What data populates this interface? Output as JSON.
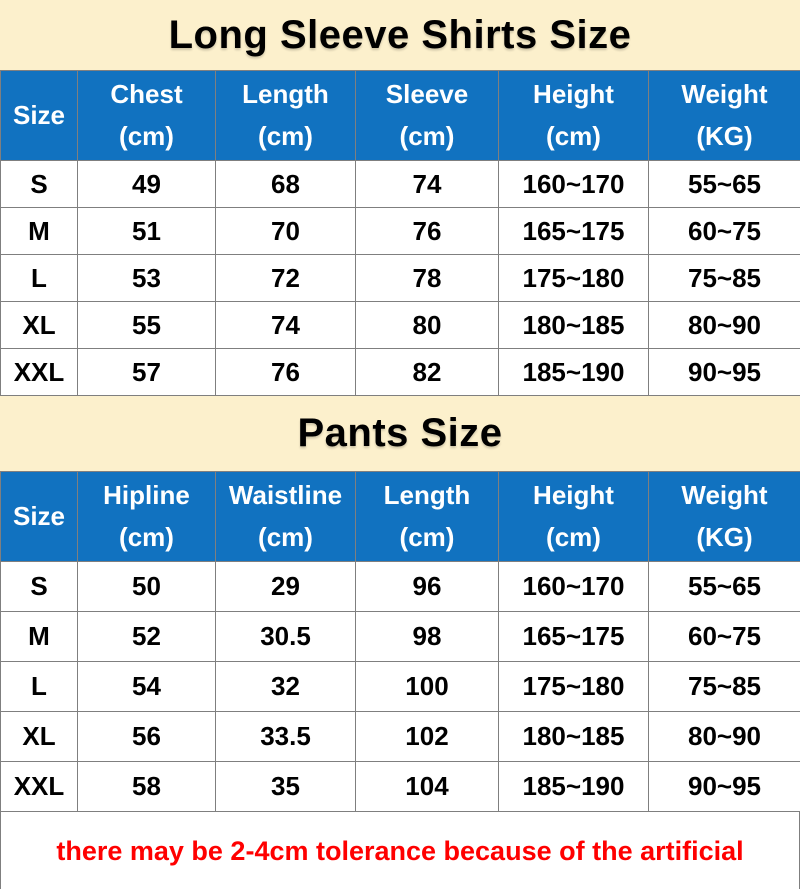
{
  "colors": {
    "banner_bg": "#FCF0CC",
    "header_bg": "#1172C0",
    "header_text": "#FFFFFF",
    "body_text": "#000000",
    "note_text": "#FF0000",
    "grid_border": "#7F7F7F"
  },
  "shirts": {
    "title": "Long Sleeve Shirts Size",
    "columns": [
      {
        "label": "Size",
        "unit": ""
      },
      {
        "label": "Chest",
        "unit": "(cm)"
      },
      {
        "label": "Length",
        "unit": "(cm)"
      },
      {
        "label": "Sleeve",
        "unit": "(cm)"
      },
      {
        "label": "Height",
        "unit": "(cm)"
      },
      {
        "label": "Weight",
        "unit": "(KG)"
      }
    ],
    "rows": [
      [
        "S",
        "49",
        "68",
        "74",
        "160~170",
        "55~65"
      ],
      [
        "M",
        "51",
        "70",
        "76",
        "165~175",
        "60~75"
      ],
      [
        "L",
        "53",
        "72",
        "78",
        "175~180",
        "75~85"
      ],
      [
        "XL",
        "55",
        "74",
        "80",
        "180~185",
        "80~90"
      ],
      [
        "XXL",
        "57",
        "76",
        "82",
        "185~190",
        "90~95"
      ]
    ]
  },
  "pants": {
    "title": "Pants Size",
    "columns": [
      {
        "label": "Size",
        "unit": ""
      },
      {
        "label": "Hipline",
        "unit": "(cm)"
      },
      {
        "label": "Waistline",
        "unit": "(cm)"
      },
      {
        "label": "Length",
        "unit": "(cm)"
      },
      {
        "label": "Height",
        "unit": "(cm)"
      },
      {
        "label": "Weight",
        "unit": "(KG)"
      }
    ],
    "rows": [
      [
        "S",
        "50",
        "29",
        "96",
        "160~170",
        "55~65"
      ],
      [
        "M",
        "52",
        "30.5",
        "98",
        "165~175",
        "60~75"
      ],
      [
        "L",
        "54",
        "32",
        "100",
        "175~180",
        "75~85"
      ],
      [
        "XL",
        "56",
        "33.5",
        "102",
        "180~185",
        "80~90"
      ],
      [
        "XXL",
        "58",
        "35",
        "104",
        "185~190",
        "90~95"
      ]
    ]
  },
  "footer": {
    "note": "there may be 2-4cm tolerance because of the artificial"
  }
}
